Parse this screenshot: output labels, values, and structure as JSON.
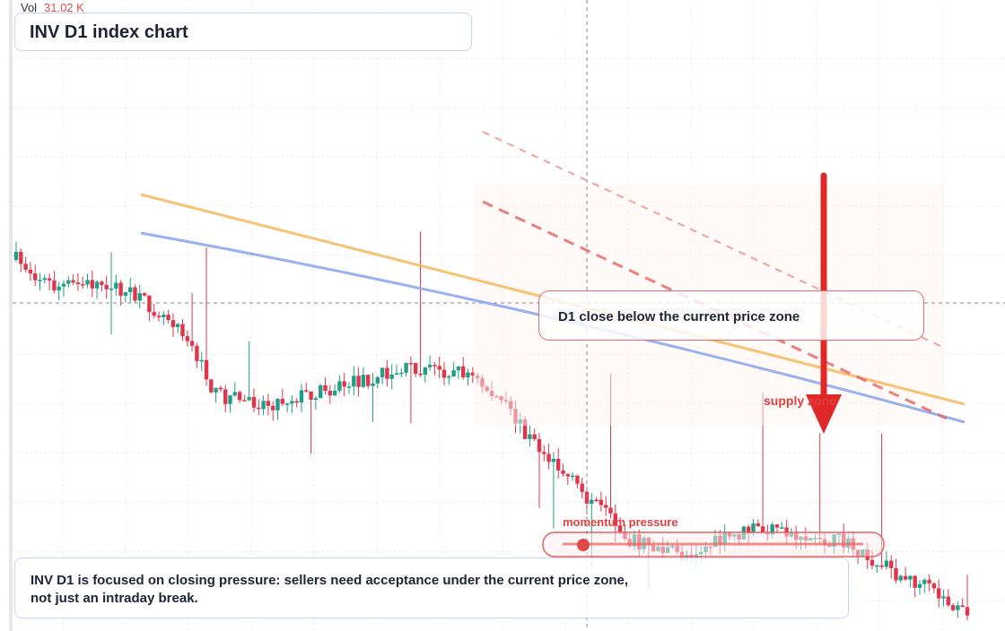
{
  "header": {
    "vol_label": "Vol",
    "vol_value": "31.02 K",
    "title": "INV D1 index chart"
  },
  "annotations": {
    "callout": "D1 close below the current price zone",
    "supply": "supply zone",
    "momentum": "momentum pressure"
  },
  "footer": {
    "lines": [
      "INV D1 is focused on closing pressure: sellers need acceptance under the current price zone,",
      "not just an intraday break."
    ]
  }
}
